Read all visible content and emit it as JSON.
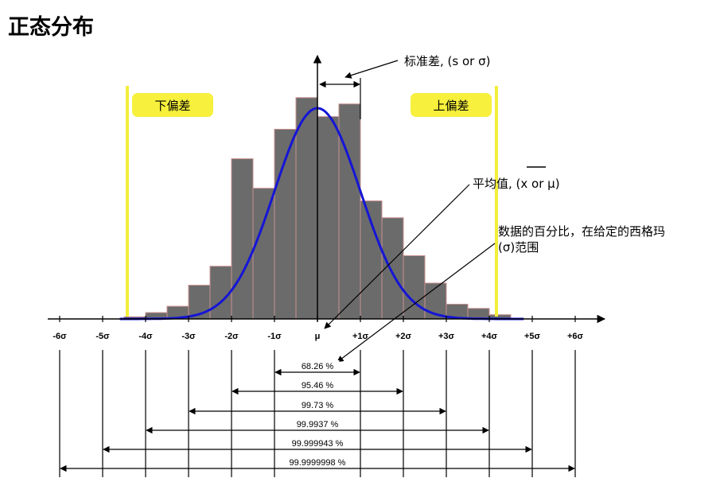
{
  "title": "正态分布",
  "labels": {
    "lower_tolerance": "下偏差",
    "upper_tolerance": "上偏差",
    "std_dev": "标准差, (s or σ)",
    "mean": "平均值, (x or μ)",
    "pct_range_line1": "数据的百分比，在给定的西格玛",
    "pct_range_line2": "(σ)范围"
  },
  "ticks": [
    "-6σ",
    "-5σ",
    "-4σ",
    "-3σ",
    "-2σ",
    "-1σ",
    "μ",
    "+1σ",
    "+2σ",
    "+3σ",
    "+4σ",
    "+5σ",
    "+6σ"
  ],
  "ranges": [
    {
      "sigma": 1,
      "label": "68.26 %"
    },
    {
      "sigma": 2,
      "label": "95.46 %"
    },
    {
      "sigma": 3,
      "label": "99.73 %"
    },
    {
      "sigma": 4,
      "label": "99.9937 %"
    },
    {
      "sigma": 5,
      "label": "99.999943 %"
    },
    {
      "sigma": 6,
      "label": "99.9999998 %"
    }
  ],
  "chart_data": {
    "type": "bar",
    "x_units": "sigma",
    "bin_width": 0.5,
    "bins": [
      {
        "x": -4.5,
        "height": 0.01
      },
      {
        "x": -4.0,
        "height": 0.03
      },
      {
        "x": -3.5,
        "height": 0.06
      },
      {
        "x": -3.0,
        "height": 0.16
      },
      {
        "x": -2.5,
        "height": 0.25
      },
      {
        "x": -2.0,
        "height": 0.76
      },
      {
        "x": -1.5,
        "height": 0.62
      },
      {
        "x": -1.0,
        "height": 0.9
      },
      {
        "x": -0.5,
        "height": 1.05
      },
      {
        "x": 0.0,
        "height": 0.96
      },
      {
        "x": 0.5,
        "height": 1.02
      },
      {
        "x": 1.0,
        "height": 0.56
      },
      {
        "x": 1.5,
        "height": 0.48
      },
      {
        "x": 2.0,
        "height": 0.3
      },
      {
        "x": 2.5,
        "height": 0.17
      },
      {
        "x": 3.0,
        "height": 0.07
      },
      {
        "x": 3.5,
        "height": 0.05
      },
      {
        "x": 4.0,
        "height": 0.02
      }
    ],
    "curve": "normal",
    "lower_limit": -4.5,
    "upper_limit": 4.2,
    "colors": {
      "bars": "#6b6b6b",
      "bar_edge": "#c98f8f",
      "curve": "#1515d6",
      "limits": "#f3ee3a",
      "tag_fill": "#f7f03c"
    }
  }
}
